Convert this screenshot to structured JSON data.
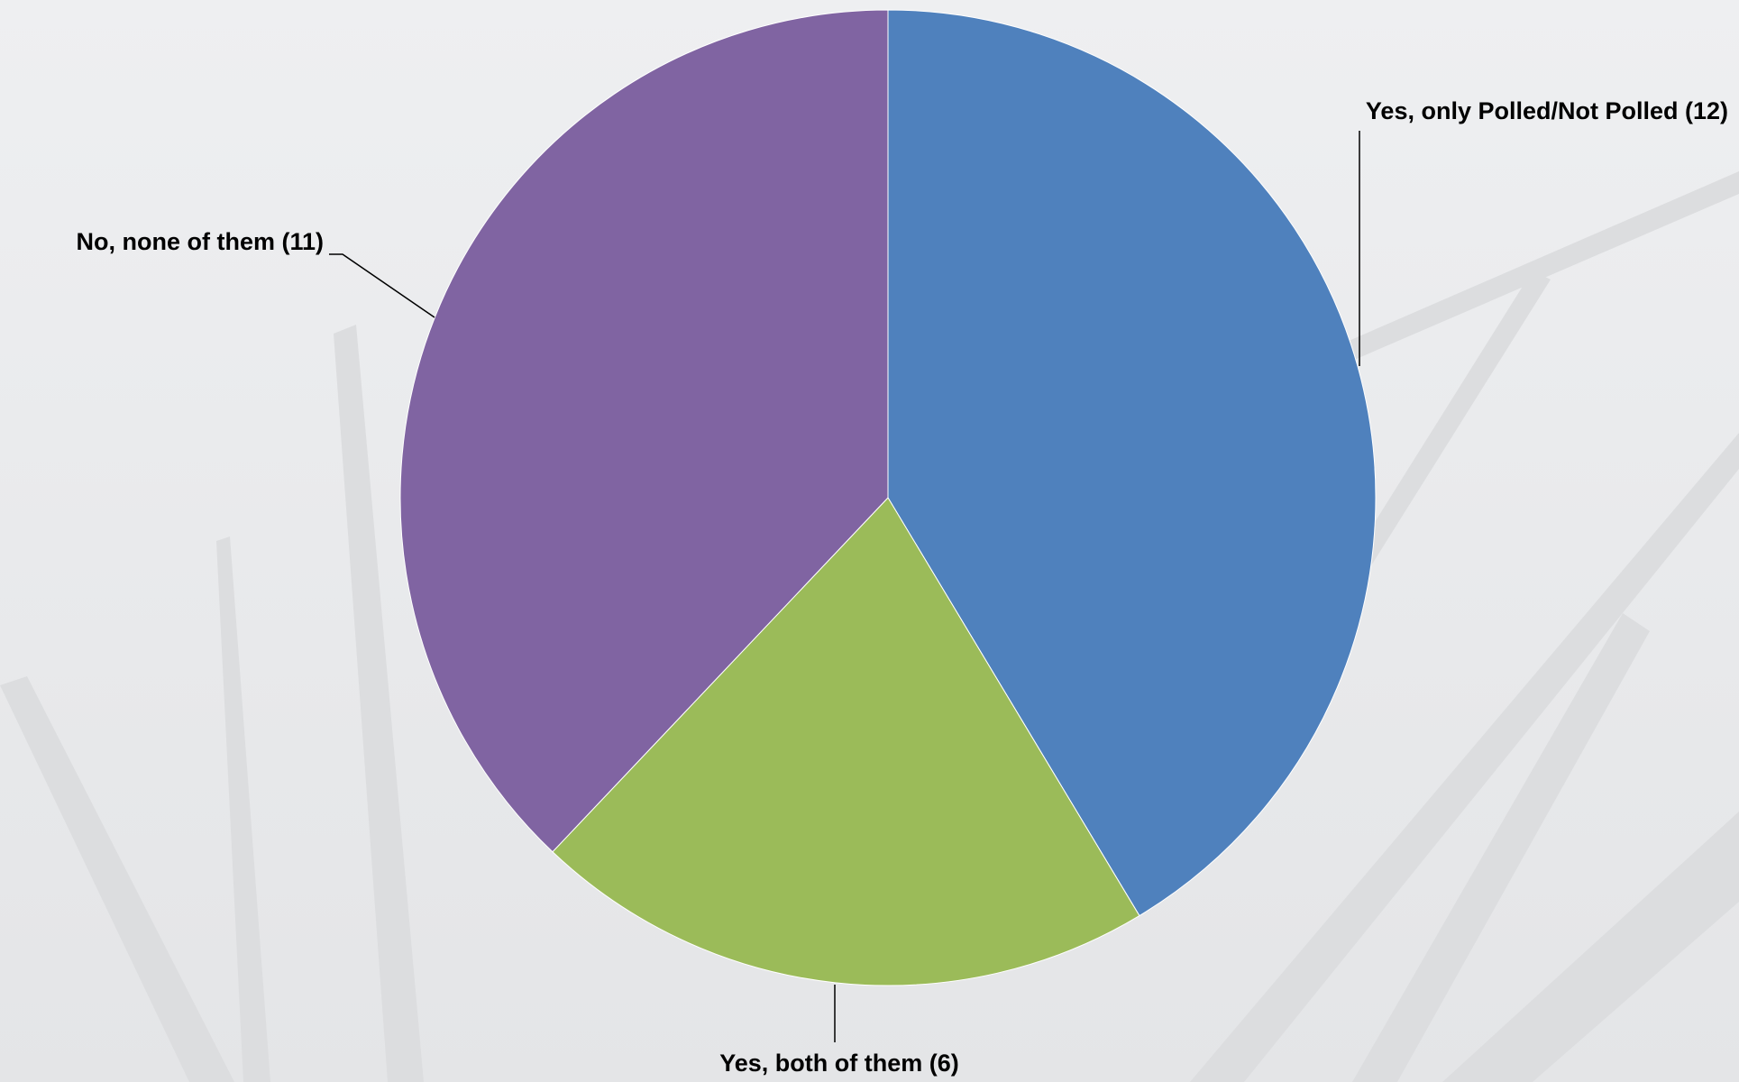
{
  "chart_data": {
    "type": "pie",
    "labels": [
      "Yes, only Polled/Not Polled (12)",
      "Yes, both of them (6)",
      "No, none of them (11)"
    ],
    "values": [
      12,
      6,
      11
    ],
    "colors": [
      "#4f81bd",
      "#9bbb59",
      "#8064a2"
    ]
  }
}
